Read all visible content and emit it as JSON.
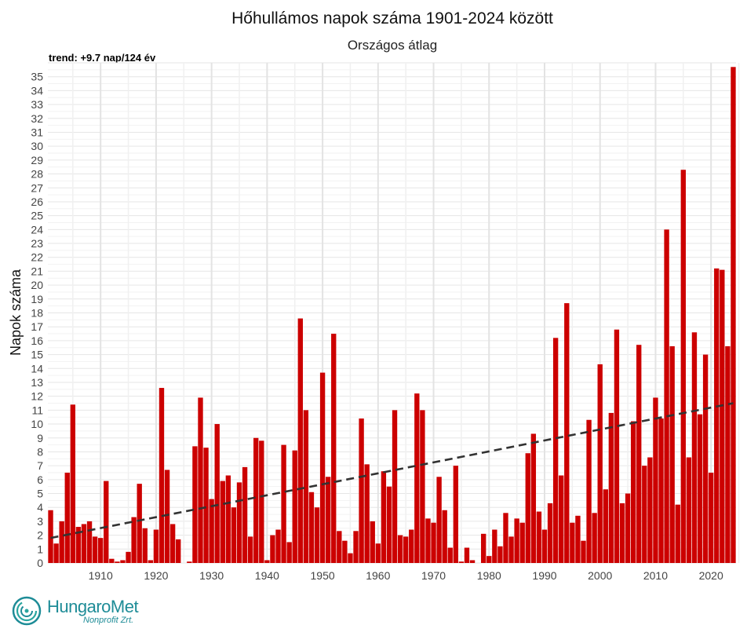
{
  "chart_data": {
    "type": "bar",
    "title": "Hőhullámos napok száma 1901-2024 között",
    "subtitle": "Országos átlag",
    "annotation": "trend: +9.7 nap/124 év",
    "ylabel": "Napok száma",
    "xlabel": "",
    "ylim": [
      0,
      36
    ],
    "yticks": [
      0,
      1,
      2,
      3,
      4,
      5,
      6,
      7,
      8,
      9,
      10,
      11,
      12,
      13,
      14,
      15,
      16,
      17,
      18,
      19,
      20,
      21,
      22,
      23,
      24,
      25,
      26,
      27,
      28,
      29,
      30,
      31,
      32,
      33,
      34,
      35
    ],
    "xticks": [
      1910,
      1920,
      1930,
      1940,
      1950,
      1960,
      1970,
      1980,
      1990,
      2000,
      2010,
      2020
    ],
    "bar_color": "#cc0000",
    "trend_color": "#333333",
    "grid": true,
    "x_start": 1901,
    "values": [
      3.8,
      1.4,
      3.0,
      6.5,
      11.4,
      2.6,
      2.8,
      3.0,
      1.9,
      1.8,
      5.9,
      0.3,
      0.1,
      0.2,
      0.8,
      3.3,
      5.7,
      2.5,
      0.2,
      2.4,
      12.6,
      6.7,
      2.8,
      1.7,
      0.0,
      0.1,
      8.4,
      11.9,
      8.3,
      4.6,
      10.0,
      5.9,
      6.3,
      4.0,
      5.8,
      6.9,
      1.9,
      9.0,
      8.8,
      0.2,
      2.0,
      2.4,
      8.5,
      1.5,
      8.1,
      17.6,
      11.0,
      5.1,
      4.0,
      13.7,
      6.2,
      16.5,
      2.3,
      1.6,
      0.7,
      2.3,
      10.4,
      7.1,
      3.0,
      1.4,
      6.6,
      5.5,
      11.0,
      2.0,
      1.9,
      2.4,
      12.2,
      11.0,
      3.2,
      2.9,
      6.2,
      3.8,
      1.1,
      7.0,
      0.1,
      1.1,
      0.2,
      0.0,
      2.1,
      0.5,
      2.4,
      1.2,
      3.6,
      1.9,
      3.2,
      2.9,
      7.9,
      9.3,
      3.7,
      2.4,
      4.3,
      16.2,
      6.3,
      18.7,
      2.9,
      3.4,
      1.6,
      10.3,
      3.6,
      14.3,
      5.3,
      10.8,
      16.8,
      4.3,
      5.0,
      10.2,
      15.7,
      7.0,
      7.6,
      11.9,
      10.4,
      24.0,
      15.6,
      4.2,
      28.3,
      7.6,
      16.6,
      10.7,
      15.0,
      6.5,
      21.2,
      21.1,
      15.6,
      35.7
    ],
    "trend": {
      "start": 1.8,
      "end": 11.5
    }
  },
  "logo": {
    "name": "HungaroMet",
    "sub": "Nonprofit Zrt."
  }
}
